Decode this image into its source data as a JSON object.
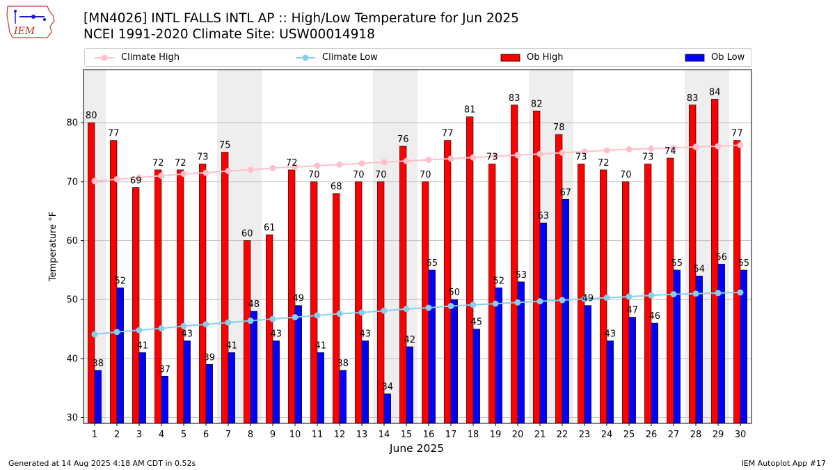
{
  "header": {
    "logo_text": "IEM",
    "title_line1": "[MN4026] INTL FALLS INTL AP :: High/Low Temperature for Jun 2025",
    "title_line2": "NCEI 1991-2020 Climate Site: USW00014918"
  },
  "legend": {
    "climate_high": "Climate High",
    "climate_low": "Climate Low",
    "ob_high": "Ob High",
    "ob_low": "Ob Low"
  },
  "colors": {
    "ob_high": "#ff0000",
    "ob_low": "#0000ff",
    "climate_high": "#ffc0cb",
    "climate_low": "#87ceeb",
    "weekend_band": "#eeeeee",
    "grid": "#b0b0b0"
  },
  "chart_data": {
    "type": "bar",
    "title": "[MN4026] INTL FALLS INTL AP :: High/Low Temperature for Jun 2025",
    "subtitle": "NCEI 1991-2020 Climate Site: USW00014918",
    "xlabel": "June 2025",
    "ylabel": "Temperature °F",
    "ylim": [
      29,
      89
    ],
    "yticks": [
      30,
      40,
      50,
      60,
      70,
      80
    ],
    "grid": true,
    "legend_position": "top",
    "shaded_days": [
      1,
      7,
      8,
      14,
      15,
      21,
      22,
      28,
      29
    ],
    "categories": [
      "1",
      "2",
      "3",
      "4",
      "5",
      "6",
      "7",
      "8",
      "9",
      "10",
      "11",
      "12",
      "13",
      "14",
      "15",
      "16",
      "17",
      "18",
      "19",
      "20",
      "21",
      "22",
      "23",
      "24",
      "25",
      "26",
      "27",
      "28",
      "29",
      "30"
    ],
    "series": [
      {
        "name": "Ob High",
        "kind": "bar",
        "values": [
          80,
          77,
          69,
          72,
          72,
          73,
          75,
          60,
          61,
          72,
          70,
          68,
          70,
          70,
          76,
          70,
          77,
          81,
          73,
          83,
          82,
          78,
          73,
          72,
          70,
          73,
          74,
          83,
          84,
          77
        ]
      },
      {
        "name": "Ob Low",
        "kind": "bar",
        "values": [
          38,
          52,
          41,
          37,
          43,
          39,
          41,
          48,
          43,
          49,
          41,
          38,
          43,
          34,
          42,
          55,
          50,
          45,
          52,
          53,
          63,
          67,
          49,
          43,
          47,
          46,
          55,
          54,
          56,
          55
        ]
      },
      {
        "name": "Climate High",
        "kind": "line",
        "values": [
          70.1,
          70.4,
          70.7,
          71.0,
          71.3,
          71.5,
          71.8,
          72.0,
          72.3,
          72.5,
          72.7,
          72.9,
          73.1,
          73.3,
          73.5,
          73.7,
          73.9,
          74.1,
          74.3,
          74.5,
          74.7,
          74.9,
          75.1,
          75.3,
          75.5,
          75.6,
          75.7,
          75.9,
          76.0,
          76.2
        ]
      },
      {
        "name": "Climate Low",
        "kind": "line",
        "values": [
          44.1,
          44.5,
          44.8,
          45.1,
          45.5,
          45.8,
          46.1,
          46.4,
          46.7,
          47.0,
          47.3,
          47.6,
          47.8,
          48.1,
          48.4,
          48.6,
          48.9,
          49.1,
          49.3,
          49.5,
          49.7,
          49.9,
          50.1,
          50.3,
          50.5,
          50.7,
          50.9,
          51.0,
          51.1,
          51.2
        ]
      }
    ]
  },
  "footer": {
    "left": "Generated at 14 Aug 2025 4:18 AM CDT in 0.52s",
    "right": "IEM Autoplot App #17"
  }
}
